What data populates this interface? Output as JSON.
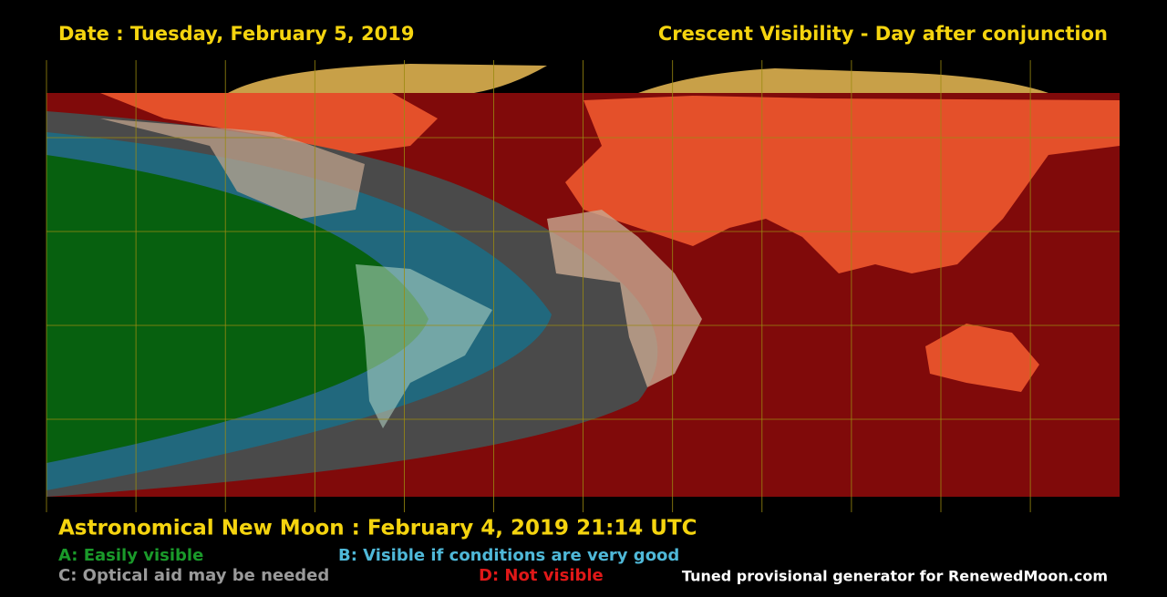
{
  "header": {
    "date": "Date : Tuesday, February 5, 2019",
    "title": "Crescent Visibility - Day after conjunction"
  },
  "footer": {
    "new_moon": "Astronomical New Moon : February 4, 2019 21:14 UTC",
    "legend": [
      {
        "label": "A: Easily visible",
        "color": "#1a9a2a"
      },
      {
        "label": "B: Visible if conditions are very good",
        "color": "#4fb8d8"
      },
      {
        "label": "C: Optical aid may be needed",
        "color": "#9a9a9a"
      },
      {
        "label": "D: Not visible",
        "color": "#e01818"
      }
    ],
    "credit": "Tuned provisional generator for RenewedMoon.com"
  }
}
